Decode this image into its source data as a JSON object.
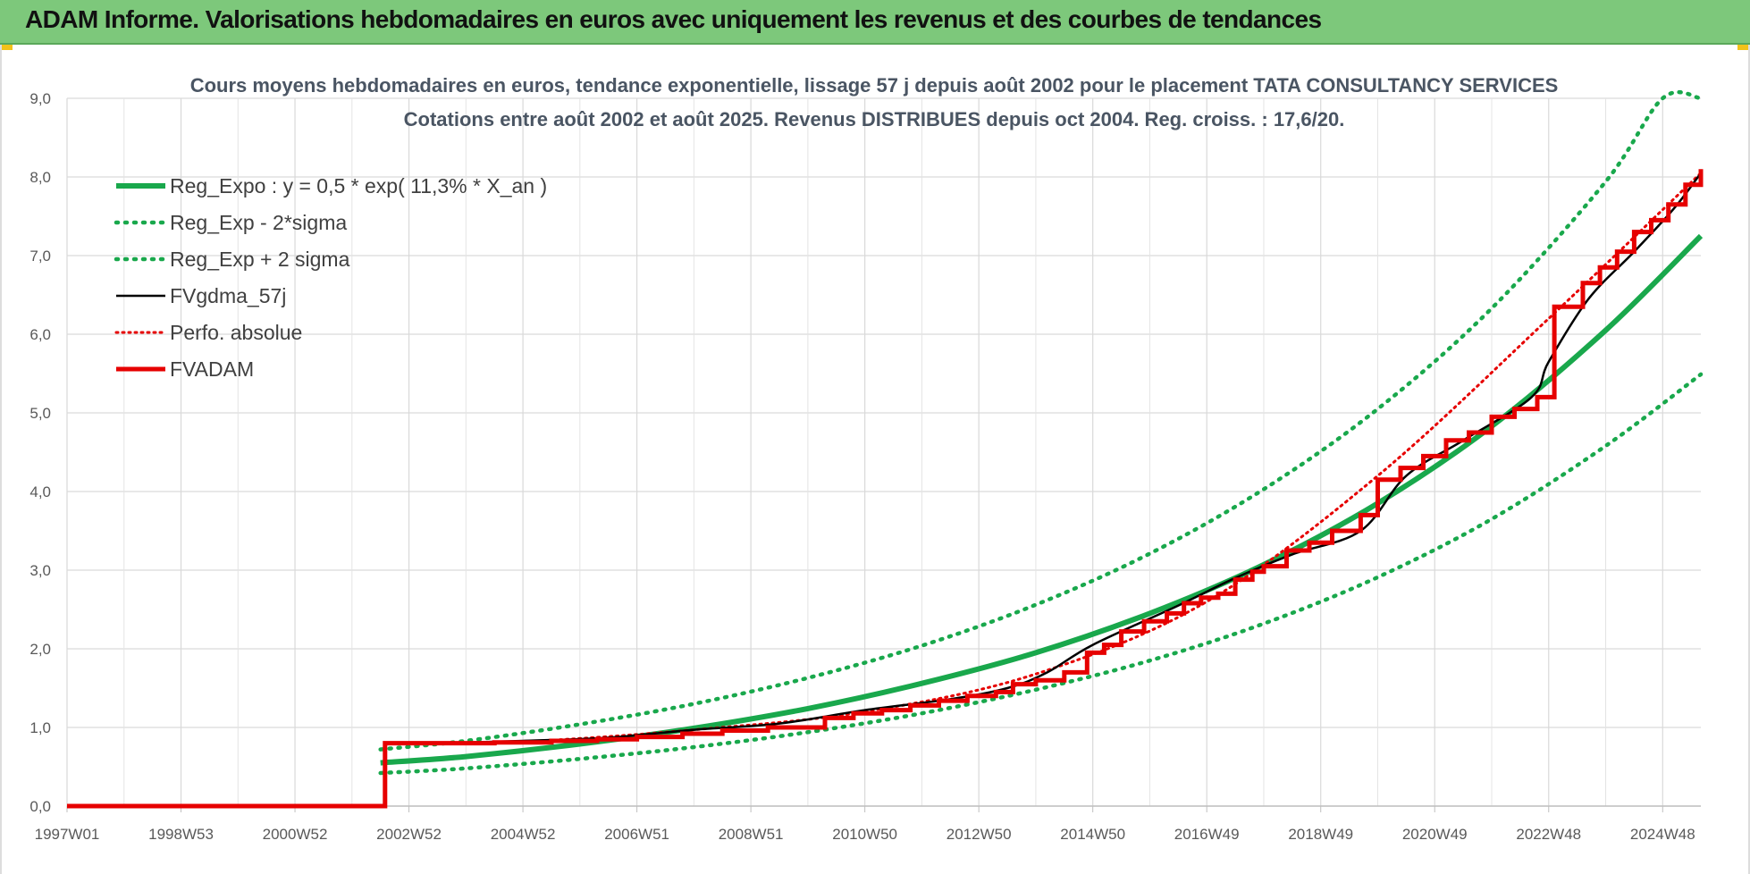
{
  "banner": {
    "title": "ADAM Informe. Valorisations hebdomadaires en euros avec uniquement les revenus et des courbes de tendances"
  },
  "chart_data": {
    "type": "line",
    "title_line1": "Cours moyens hebdomadaires en euros, tendance exponentielle, lissage 57 j depuis août 2002 pour le placement TATA CONSULTANCY SERVICES",
    "title_line2": "Cotations entre août 2002 et août 2025. Revenus DISTRIBUES depuis oct 2004. Reg. croiss. : 17,6/20.",
    "xlabel": "",
    "ylabel": "",
    "ylim": [
      0,
      9
    ],
    "yticks": [
      "0,0",
      "1,0",
      "2,0",
      "3,0",
      "4,0",
      "5,0",
      "6,0",
      "7,0",
      "8,0",
      "9,0"
    ],
    "xlim": [
      1997.0,
      2025.67
    ],
    "xticks": [
      {
        "x": 1997.0,
        "label": "1997W01"
      },
      {
        "x": 1999.0,
        "label": "1998W53"
      },
      {
        "x": 2001.0,
        "label": "2000W52"
      },
      {
        "x": 2003.0,
        "label": "2002W52"
      },
      {
        "x": 2005.0,
        "label": "2004W52"
      },
      {
        "x": 2007.0,
        "label": "2006W51"
      },
      {
        "x": 2009.0,
        "label": "2008W51"
      },
      {
        "x": 2011.0,
        "label": "2010W50"
      },
      {
        "x": 2013.0,
        "label": "2012W50"
      },
      {
        "x": 2015.0,
        "label": "2014W50"
      },
      {
        "x": 2017.0,
        "label": "2016W49"
      },
      {
        "x": 2019.0,
        "label": "2018W49"
      },
      {
        "x": 2021.0,
        "label": "2020W49"
      },
      {
        "x": 2023.0,
        "label": "2022W48"
      },
      {
        "x": 2025.0,
        "label": "2024W48"
      }
    ],
    "grid": true,
    "legend_position": "top-left",
    "colors": {
      "green": "#19a84c",
      "black": "#000000",
      "red": "#e60000"
    },
    "series": [
      {
        "name": "Reg_Expo : y = 0,5 * exp( 11,3% *  X_an )",
        "style": "solid-green",
        "x": [
          2002.5,
          2004,
          2006,
          2008,
          2010,
          2012,
          2014,
          2016,
          2018,
          2020,
          2022,
          2024,
          2025.67
        ],
        "values": [
          0.55,
          0.63,
          0.79,
          0.99,
          1.24,
          1.56,
          1.95,
          2.45,
          3.07,
          3.85,
          4.83,
          6.05,
          7.25
        ]
      },
      {
        "name": "Reg_Exp - 2*sigma",
        "style": "dotted-green",
        "x": [
          2002.5,
          2004,
          2006,
          2008,
          2010,
          2012,
          2014,
          2016,
          2018,
          2020,
          2022,
          2024,
          2025.67
        ],
        "values": [
          0.42,
          0.48,
          0.6,
          0.75,
          0.94,
          1.18,
          1.48,
          1.85,
          2.32,
          2.91,
          3.65,
          4.58,
          5.49
        ]
      },
      {
        "name": "Reg_Exp + 2 sigma",
        "style": "dotted-green",
        "x": [
          2002.5,
          2004,
          2006,
          2008,
          2010,
          2012,
          2014,
          2016,
          2018,
          2020,
          2022,
          2024,
          2025.0,
          2025.67
        ],
        "values": [
          0.72,
          0.83,
          1.04,
          1.3,
          1.63,
          2.04,
          2.56,
          3.21,
          4.03,
          5.05,
          6.33,
          7.94,
          9.0,
          9.0
        ]
      },
      {
        "name": "FVgdma_57j",
        "style": "solid-black",
        "x": [
          2002.58,
          2003.5,
          2005,
          2006.5,
          2008,
          2009.5,
          2011,
          2012.5,
          2013.5,
          2014.2,
          2015,
          2016.5,
          2017.5,
          2018.5,
          2019.7,
          2020.5,
          2021.5,
          2022.7,
          2023.0,
          2023.7,
          2024.5,
          2025.2,
          2025.67
        ],
        "values": [
          0.8,
          0.8,
          0.83,
          0.87,
          0.97,
          1.05,
          1.22,
          1.36,
          1.5,
          1.7,
          2.05,
          2.55,
          2.9,
          3.2,
          3.5,
          4.2,
          4.65,
          5.2,
          5.65,
          6.45,
          7.05,
          7.6,
          8.05
        ]
      },
      {
        "name": "Perfo. absolue",
        "style": "dotted-red",
        "x": [
          2002.58,
          2005,
          2008,
          2011,
          2014,
          2017,
          2020,
          2023,
          2025.67
        ],
        "values": [
          0.8,
          0.82,
          0.97,
          1.2,
          1.68,
          2.6,
          4.2,
          6.2,
          8.05
        ]
      },
      {
        "name": "FVADAM",
        "style": "solid-red",
        "x": [
          1997.0,
          2002.58,
          2002.58,
          2003.5,
          2004.5,
          2005.5,
          2006.3,
          2007.0,
          2007.8,
          2008.5,
          2009.3,
          2010.3,
          2010.3,
          2010.8,
          2011.3,
          2011.8,
          2012.3,
          2012.8,
          2013.3,
          2013.6,
          2014.0,
          2014.5,
          2014.9,
          2015.2,
          2015.5,
          2015.9,
          2016.3,
          2016.6,
          2016.9,
          2017.2,
          2017.5,
          2017.8,
          2018.0,
          2018.4,
          2018.8,
          2019.2,
          2019.7,
          2020.0,
          2020.4,
          2020.8,
          2021.2,
          2021.6,
          2022.0,
          2022.4,
          2022.8,
          2023.1,
          2023.1,
          2023.6,
          2023.9,
          2024.2,
          2024.5,
          2024.8,
          2025.1,
          2025.4,
          2025.67
        ],
        "values": [
          0.0,
          0.0,
          0.8,
          0.8,
          0.81,
          0.83,
          0.85,
          0.88,
          0.92,
          0.96,
          1.0,
          1.05,
          1.12,
          1.18,
          1.22,
          1.28,
          1.34,
          1.4,
          1.45,
          1.55,
          1.6,
          1.7,
          1.95,
          2.05,
          2.22,
          2.35,
          2.45,
          2.58,
          2.65,
          2.7,
          2.88,
          2.98,
          3.05,
          3.25,
          3.35,
          3.5,
          3.7,
          4.15,
          4.3,
          4.45,
          4.65,
          4.75,
          4.95,
          5.05,
          5.2,
          5.45,
          6.35,
          6.65,
          6.85,
          7.05,
          7.3,
          7.45,
          7.65,
          7.9,
          8.1
        ]
      }
    ]
  }
}
